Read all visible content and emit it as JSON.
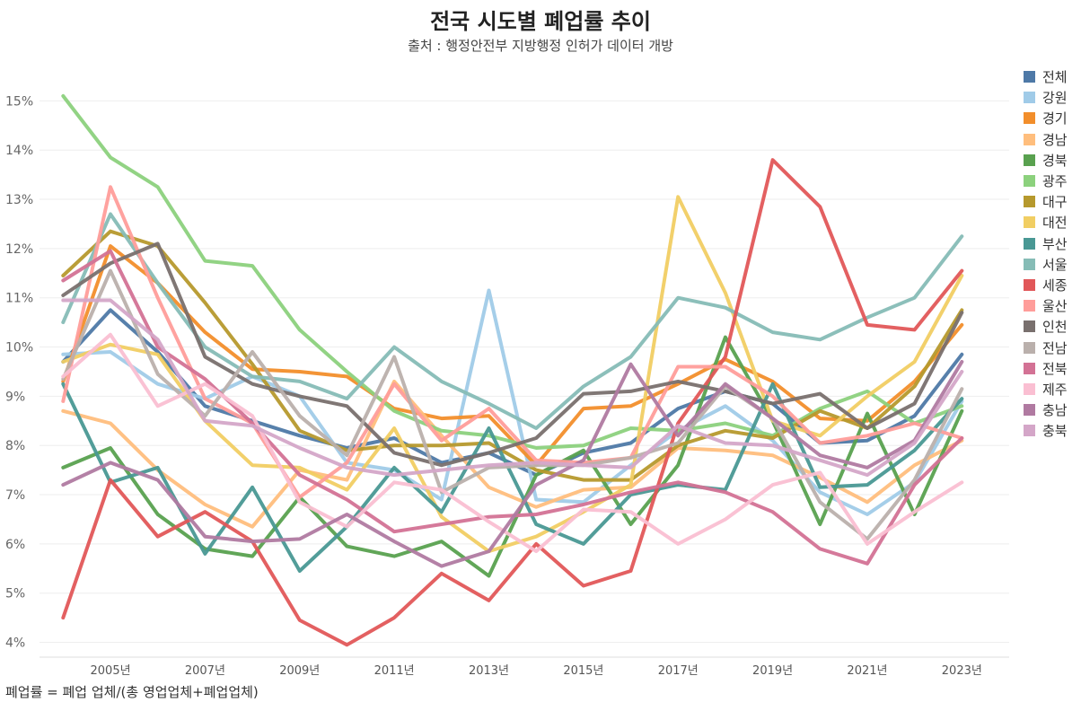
{
  "header": {
    "title": "전국 시도별 폐업률 추이",
    "subtitle": "출처 : 행정안전부 지방행정 인허가 데이터 개방"
  },
  "footnote": "폐업률 = 폐업 업체/(총 영업업체+폐업업체)",
  "chart_data": {
    "type": "line",
    "title": "전국 시도별 폐업률 추이",
    "subtitle": "출처 : 행정안전부 지방행정 인허가 데이터 개방",
    "xlabel": "",
    "ylabel": "",
    "x": [
      2004,
      2005,
      2006,
      2007,
      2008,
      2009,
      2010,
      2011,
      2012,
      2013,
      2014,
      2015,
      2016,
      2017,
      2018,
      2019,
      2020,
      2021,
      2022,
      2023
    ],
    "xlim": [
      2003.5,
      2024.0
    ],
    "ylim": [
      3.7,
      15.7
    ],
    "x_tick_values": [
      2005,
      2007,
      2009,
      2011,
      2013,
      2015,
      2017,
      2019,
      2021,
      2023
    ],
    "x_tick_labels": [
      "2005년",
      "2007년",
      "2009년",
      "2011년",
      "2013년",
      "2015년",
      "2017년",
      "2019년",
      "2021년",
      "2023년"
    ],
    "y_tick_values": [
      4,
      5,
      6,
      7,
      8,
      9,
      10,
      11,
      12,
      13,
      14,
      15
    ],
    "y_tick_labels": [
      "4%",
      "5%",
      "6%",
      "7%",
      "8%",
      "9%",
      "10%",
      "11%",
      "12%",
      "13%",
      "14%",
      "15%"
    ],
    "grid": true,
    "legend_position": "right",
    "series": [
      {
        "name": "전체",
        "color": "#4e79a7",
        "values": [
          9.7,
          10.75,
          9.9,
          8.8,
          8.5,
          8.2,
          7.95,
          8.15,
          7.65,
          7.85,
          7.4,
          7.85,
          8.05,
          8.75,
          9.1,
          8.85,
          8.05,
          8.1,
          8.6,
          9.85
        ]
      },
      {
        "name": "강원",
        "color": "#a0cbe8",
        "values": [
          9.85,
          9.9,
          9.25,
          8.95,
          9.4,
          9.0,
          7.65,
          7.5,
          6.9,
          11.15,
          6.9,
          6.85,
          7.6,
          8.3,
          8.8,
          8.1,
          7.05,
          6.6,
          7.25,
          8.9
        ]
      },
      {
        "name": "경기",
        "color": "#f28e2b",
        "values": [
          9.3,
          12.05,
          11.3,
          10.3,
          9.55,
          9.5,
          9.4,
          8.75,
          8.55,
          8.6,
          7.6,
          8.75,
          8.8,
          9.25,
          9.75,
          9.3,
          8.55,
          8.5,
          9.3,
          10.45
        ]
      },
      {
        "name": "경남",
        "color": "#ffbe7d",
        "values": [
          8.7,
          8.45,
          7.5,
          6.8,
          6.35,
          7.5,
          7.3,
          9.3,
          8.2,
          7.15,
          6.75,
          7.1,
          7.15,
          7.95,
          7.9,
          7.8,
          7.35,
          6.85,
          7.6,
          8.1
        ]
      },
      {
        "name": "경북",
        "color": "#59a14f",
        "values": [
          7.55,
          7.95,
          6.6,
          5.9,
          5.75,
          6.95,
          5.95,
          5.75,
          6.05,
          5.35,
          7.4,
          7.9,
          6.4,
          7.6,
          10.2,
          8.5,
          6.4,
          8.65,
          6.6,
          8.7
        ]
      },
      {
        "name": "광주",
        "color": "#8cd17d",
        "values": [
          15.1,
          13.85,
          13.25,
          11.75,
          11.65,
          10.35,
          9.5,
          8.7,
          8.3,
          8.2,
          7.95,
          8.0,
          8.35,
          8.3,
          8.45,
          8.2,
          8.75,
          9.1,
          8.45,
          8.8
        ]
      },
      {
        "name": "대구",
        "color": "#b6992d",
        "values": [
          11.45,
          12.35,
          12.05,
          10.9,
          9.65,
          8.3,
          7.9,
          8.0,
          8.0,
          8.05,
          7.5,
          7.3,
          7.3,
          8.0,
          8.3,
          8.15,
          8.7,
          8.35,
          9.2,
          10.75
        ]
      },
      {
        "name": "대전",
        "color": "#f1ce63",
        "values": [
          9.7,
          10.05,
          9.85,
          8.5,
          7.6,
          7.55,
          7.1,
          8.35,
          6.55,
          5.85,
          6.15,
          6.65,
          7.2,
          13.05,
          11.1,
          8.5,
          8.2,
          9.0,
          9.7,
          11.45
        ]
      },
      {
        "name": "부산",
        "color": "#499894",
        "values": [
          9.25,
          7.25,
          7.55,
          5.8,
          7.15,
          5.45,
          6.35,
          7.55,
          6.65,
          8.35,
          6.4,
          6.0,
          7.0,
          7.2,
          7.1,
          9.25,
          7.15,
          7.2,
          7.9,
          8.95
        ]
      },
      {
        "name": "서울",
        "color": "#86bcb6",
        "values": [
          10.5,
          12.7,
          11.3,
          10.0,
          9.4,
          9.3,
          8.95,
          10.0,
          9.3,
          8.85,
          8.35,
          9.2,
          9.8,
          11.0,
          10.8,
          10.3,
          10.15,
          10.6,
          11.0,
          12.25
        ]
      },
      {
        "name": "세종",
        "color": "#e15759",
        "values": [
          4.5,
          7.3,
          6.15,
          6.65,
          6.05,
          4.45,
          3.95,
          4.5,
          5.4,
          4.85,
          6.0,
          5.15,
          5.45,
          8.45,
          9.8,
          13.8,
          12.85,
          10.45,
          10.35,
          11.55
        ]
      },
      {
        "name": "울산",
        "color": "#ff9d9a",
        "values": [
          8.9,
          13.25,
          11.0,
          8.95,
          8.45,
          6.95,
          7.65,
          9.25,
          8.1,
          8.75,
          7.7,
          7.65,
          7.75,
          9.6,
          9.6,
          9.0,
          8.05,
          8.2,
          8.45,
          8.15
        ]
      },
      {
        "name": "인천",
        "color": "#79706e",
        "values": [
          11.05,
          11.7,
          12.1,
          9.8,
          9.25,
          9.0,
          8.8,
          7.85,
          7.6,
          7.85,
          8.15,
          9.05,
          9.1,
          9.3,
          9.1,
          8.85,
          9.05,
          8.35,
          8.85,
          10.7
        ]
      },
      {
        "name": "전남",
        "color": "#bab0ac",
        "values": [
          9.35,
          11.55,
          9.45,
          8.6,
          9.9,
          8.6,
          7.8,
          9.8,
          7.05,
          7.55,
          7.6,
          7.6,
          7.75,
          8.05,
          9.2,
          8.55,
          6.85,
          6.1,
          7.3,
          9.15
        ]
      },
      {
        "name": "전북",
        "color": "#d37295",
        "values": [
          11.35,
          11.95,
          10.0,
          9.35,
          8.45,
          7.4,
          6.9,
          6.25,
          6.4,
          6.55,
          6.6,
          6.8,
          7.05,
          7.25,
          7.05,
          6.65,
          5.9,
          5.6,
          7.2,
          8.15
        ]
      },
      {
        "name": "제주",
        "color": "#fabfd2",
        "values": [
          9.4,
          10.25,
          8.8,
          9.25,
          8.6,
          6.85,
          6.35,
          7.25,
          7.1,
          6.45,
          5.85,
          6.7,
          6.65,
          6.0,
          6.5,
          7.2,
          7.45,
          6.0,
          6.65,
          7.25
        ]
      },
      {
        "name": "충남",
        "color": "#b07aa1",
        "values": [
          7.2,
          7.65,
          7.3,
          6.15,
          6.05,
          6.1,
          6.6,
          6.05,
          5.55,
          5.85,
          7.2,
          7.7,
          9.65,
          8.2,
          9.25,
          8.55,
          7.8,
          7.55,
          8.1,
          9.7
        ]
      },
      {
        "name": "충북",
        "color": "#d4a6c8",
        "values": [
          10.95,
          10.95,
          10.15,
          8.5,
          8.4,
          7.95,
          7.55,
          7.4,
          7.5,
          7.6,
          7.65,
          7.6,
          7.55,
          8.4,
          8.05,
          8.0,
          7.7,
          7.4,
          8.05,
          9.5
        ]
      }
    ]
  }
}
